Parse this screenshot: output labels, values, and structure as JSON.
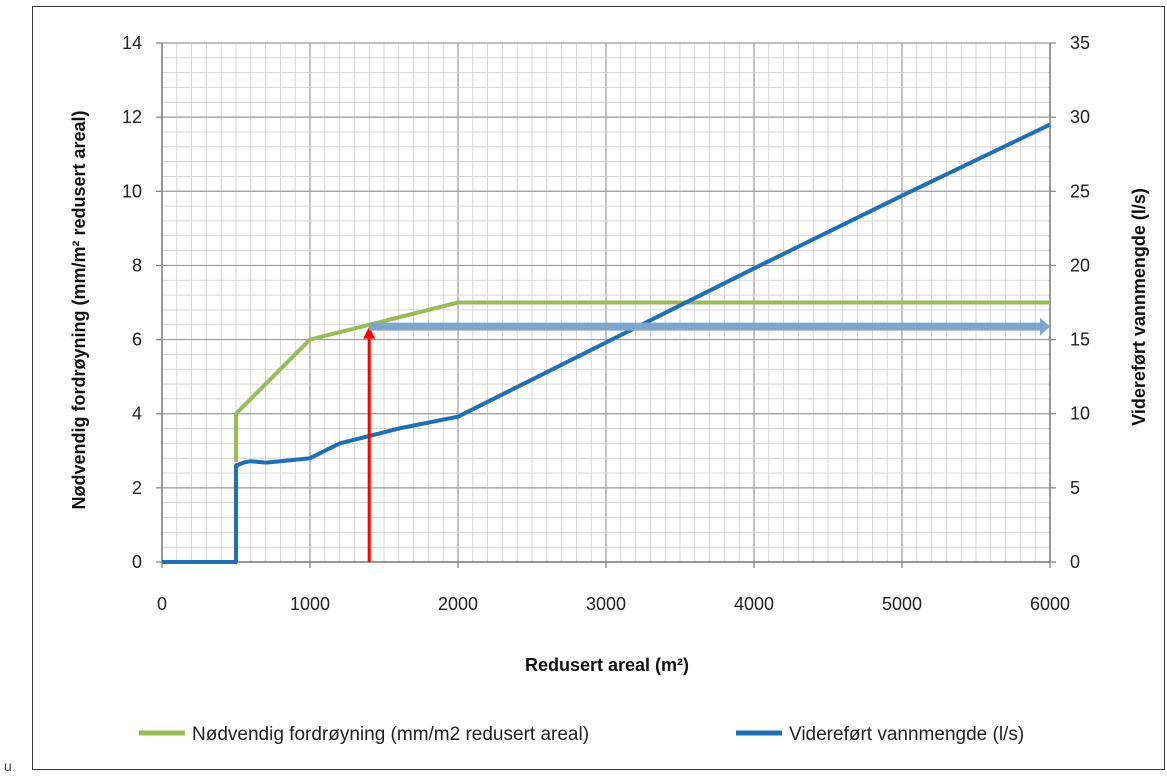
{
  "chart_data": {
    "type": "line",
    "xlabel": "Redusert areal (m²)",
    "ylabel_left": "Nødvendig fordrøyning (mm/m² redusert areal)",
    "ylabel_right": "Videreført vannmengde (l/s)",
    "xlim": [
      0,
      6000
    ],
    "ylim_left": [
      0,
      14
    ],
    "ylim_right": [
      0,
      35
    ],
    "x_ticks": [
      "0",
      "1000",
      "2000",
      "3000",
      "4000",
      "5000",
      "6000"
    ],
    "y_left_ticks": [
      "0",
      "2",
      "4",
      "6",
      "8",
      "10",
      "12",
      "14"
    ],
    "y_right_ticks": [
      "0",
      "5",
      "10",
      "15",
      "20",
      "25",
      "30",
      "35"
    ],
    "grid": true,
    "legend_position": "bottom",
    "series": [
      {
        "name": "Nødvendig fordrøyning (mm/m2 redusert areal)",
        "axis": "left",
        "color": "#9BBB59",
        "points": [
          [
            500,
            2.7
          ],
          [
            500,
            4.0
          ],
          [
            1000,
            6.0
          ],
          [
            1500,
            6.5
          ],
          [
            2000,
            7.0
          ],
          [
            6000,
            7.0
          ]
        ]
      },
      {
        "name": "Videreført vannmengde (l/s)",
        "axis": "right",
        "color": "#1F6FB5",
        "points": [
          [
            0,
            0
          ],
          [
            500,
            0
          ],
          [
            500,
            6.5
          ],
          [
            550,
            6.7
          ],
          [
            600,
            6.8
          ],
          [
            700,
            6.7
          ],
          [
            800,
            6.8
          ],
          [
            900,
            6.9
          ],
          [
            1000,
            7.0
          ],
          [
            1200,
            8.0
          ],
          [
            1400,
            8.5
          ],
          [
            1600,
            9.0
          ],
          [
            2000,
            9.8
          ],
          [
            3000,
            14.8
          ],
          [
            4000,
            19.8
          ],
          [
            5000,
            24.7
          ],
          [
            6000,
            29.5
          ]
        ]
      }
    ],
    "annotations": [
      {
        "kind": "arrow",
        "color": "#FF0000",
        "from": [
          1400,
          0
        ],
        "to": [
          1400,
          6.35
        ],
        "axis": "left"
      },
      {
        "kind": "arrow",
        "color": "#7EA6CC",
        "from": [
          1400,
          6.35
        ],
        "to": [
          6000,
          6.35
        ],
        "axis": "left"
      }
    ]
  },
  "corner_mark": "u"
}
